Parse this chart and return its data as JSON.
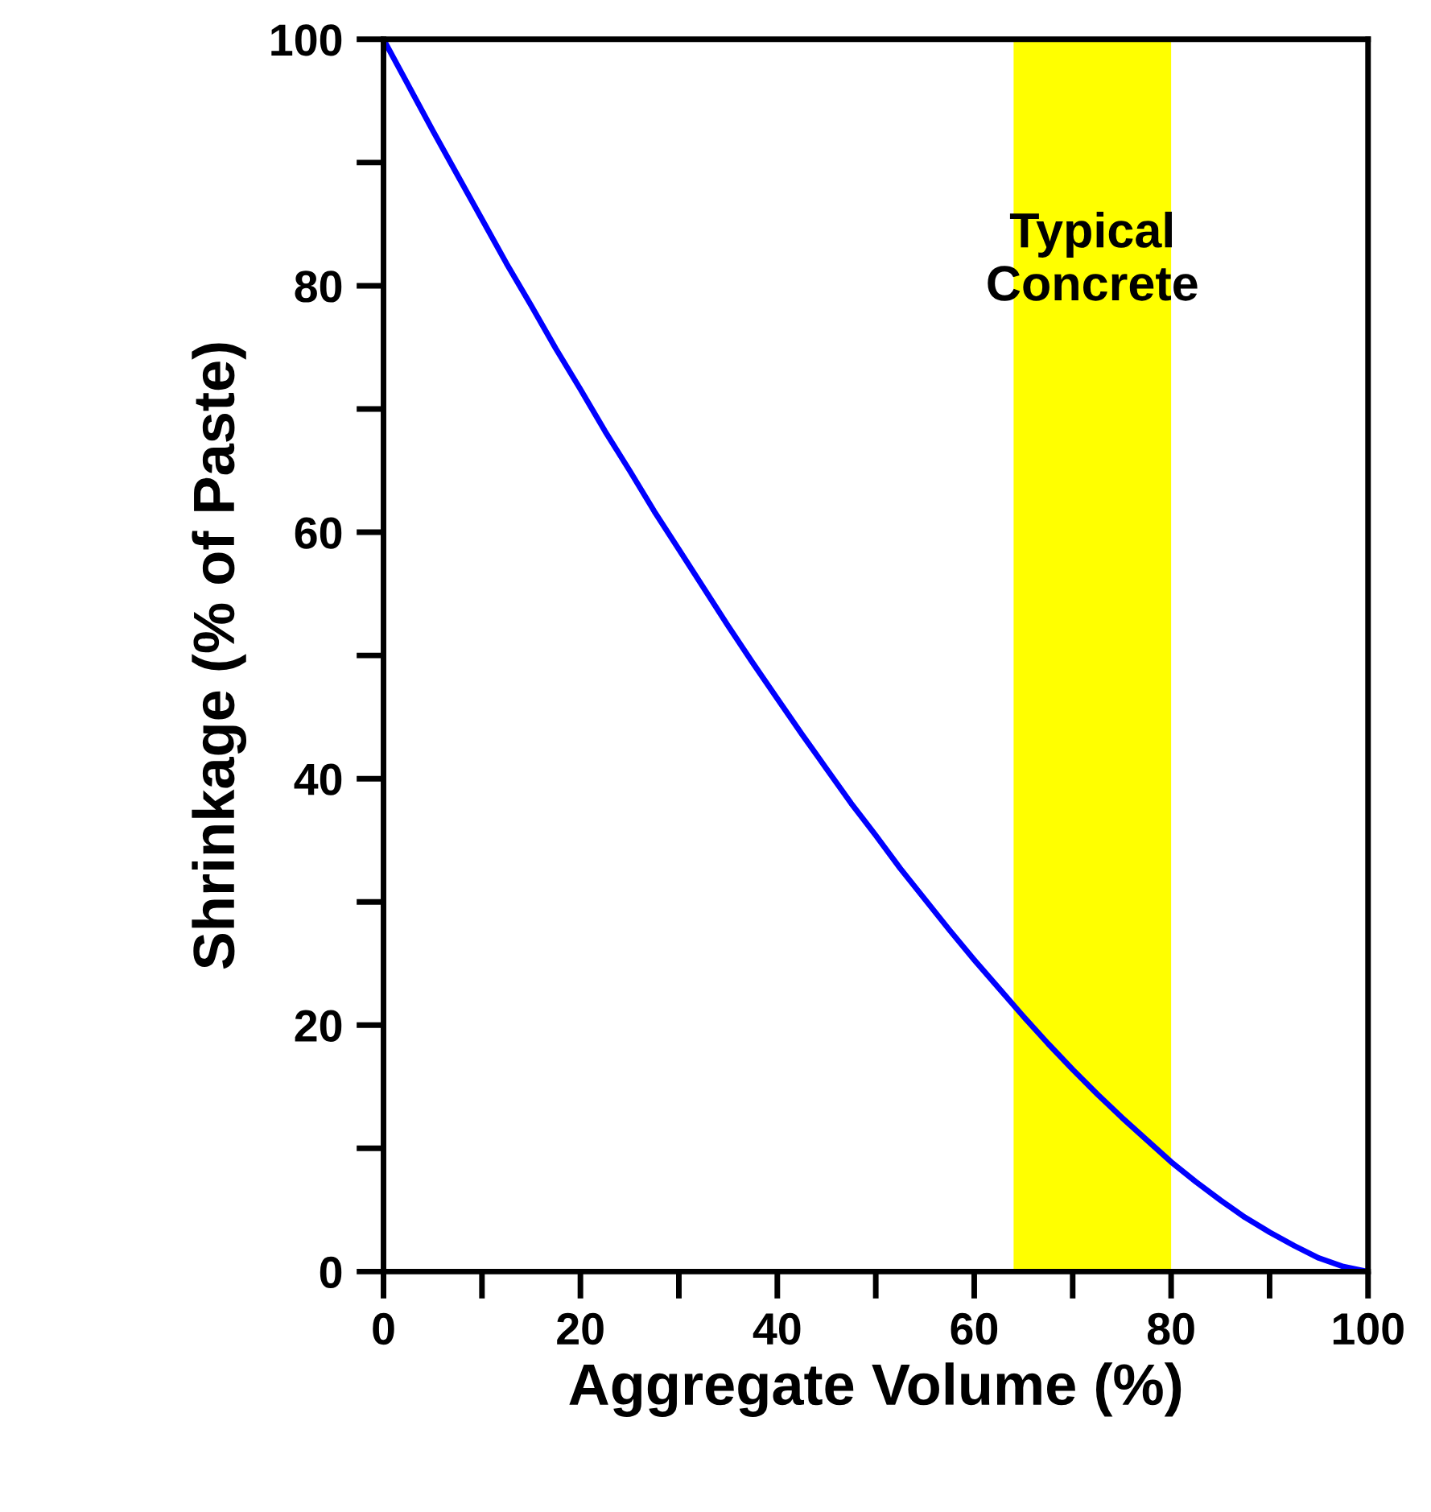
{
  "chart_data": {
    "type": "line",
    "xlabel": "Aggregate Volume (%)",
    "ylabel": "Shrinkage (% of Paste)",
    "x": [
      0,
      2.5,
      5,
      7.5,
      10,
      12.5,
      15,
      17.5,
      20,
      22.5,
      25,
      27.5,
      30,
      32.5,
      35,
      37.5,
      40,
      42.5,
      45,
      47.5,
      50,
      52.5,
      55,
      57.5,
      60,
      62.5,
      65,
      67.5,
      70,
      72.5,
      75,
      77.5,
      80,
      82.5,
      85,
      87.5,
      90,
      92.5,
      95,
      97.5,
      100
    ],
    "series": [
      {
        "color": "#0000ff",
        "values": [
          100,
          96.3,
          92.6,
          89.0,
          85.4,
          81.8,
          78.4,
          74.9,
          71.6,
          68.2,
          65.0,
          61.7,
          58.6,
          55.5,
          52.4,
          49.4,
          46.5,
          43.6,
          40.8,
          38.0,
          35.4,
          32.7,
          30.2,
          27.7,
          25.3,
          23.0,
          20.7,
          18.5,
          16.4,
          14.4,
          12.5,
          10.7,
          8.9,
          7.3,
          5.8,
          4.4,
          3.2,
          2.1,
          1.1,
          0.4,
          0
        ]
      }
    ],
    "xlim": [
      0,
      100
    ],
    "ylim": [
      0,
      100
    ],
    "xticks": [
      0,
      20,
      40,
      60,
      80,
      100
    ],
    "yticks": [
      0,
      20,
      40,
      60,
      80,
      100
    ],
    "bands": [
      {
        "axis": "x",
        "from": 64,
        "to": 80,
        "label": "Typical\nConcrete",
        "color": "#ffff00"
      }
    ],
    "grid": false,
    "legend": false,
    "marker": "none",
    "line_style": "solid"
  }
}
